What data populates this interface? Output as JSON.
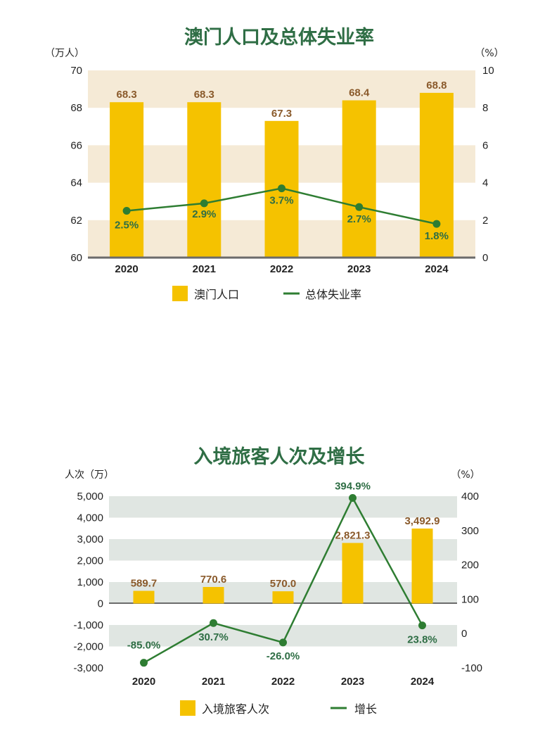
{
  "colors": {
    "bar": "#f5c200",
    "line": "#2e7d32",
    "band1": "#f5ead6",
    "band2": "#e0e6e2",
    "title": "#2f6e45",
    "barlabel": "#8a5a2b"
  },
  "chart_data": [
    {
      "type": "bar",
      "title": "澳门人口及总体失业率",
      "left_unit": "（万人）",
      "right_unit": "（%）",
      "categories": [
        "2020",
        "2021",
        "2022",
        "2023",
        "2024"
      ],
      "y_ticks": [
        "70",
        "68",
        "66",
        "64",
        "62",
        "60"
      ],
      "y2_ticks": [
        "10",
        "8",
        "6",
        "4",
        "2",
        "0"
      ],
      "ylim": [
        60,
        70
      ],
      "y2lim": [
        0,
        10
      ],
      "series": [
        {
          "name": "澳门人口",
          "type": "bar",
          "axis": "left",
          "values": [
            68.3,
            68.3,
            67.3,
            68.4,
            68.8
          ],
          "labels": [
            "68.3",
            "68.3",
            "67.3",
            "68.4",
            "68.8"
          ]
        },
        {
          "name": "总体失业率",
          "type": "line",
          "axis": "right",
          "values": [
            2.5,
            2.9,
            3.7,
            2.7,
            1.8
          ],
          "labels": [
            "2.5%",
            "2.9%",
            "3.7%",
            "2.7%",
            "1.8%"
          ]
        }
      ],
      "legend_position": "bottom"
    },
    {
      "type": "bar",
      "title": "入境旅客人次及增长",
      "left_unit": "人次（万）",
      "right_unit": "（%）",
      "categories": [
        "2020",
        "2021",
        "2022",
        "2023",
        "2024"
      ],
      "y_ticks": [
        "5,000",
        "4,000",
        "3,000",
        "2,000",
        "1,000",
        "0",
        "-1,000",
        "-2,000",
        "-3,000"
      ],
      "y2_ticks": [
        "400",
        "300",
        "200",
        "100",
        "0",
        "-100"
      ],
      "ylim": [
        -3000,
        5000
      ],
      "y2lim": [
        -100,
        400
      ],
      "series": [
        {
          "name": "入境旅客人次",
          "type": "bar",
          "axis": "left",
          "values": [
            589.7,
            770.6,
            570.0,
            2821.3,
            3492.9
          ],
          "labels": [
            "589.7",
            "770.6",
            "570.0",
            "2,821.3",
            "3,492.9"
          ]
        },
        {
          "name": "增长",
          "type": "line",
          "axis": "right",
          "values": [
            -85.0,
            30.7,
            -26.0,
            394.9,
            23.8
          ],
          "labels": [
            "-85.0%",
            "30.7%",
            "-26.0%",
            "394.9%",
            "23.8%"
          ]
        }
      ],
      "legend_position": "bottom"
    }
  ]
}
